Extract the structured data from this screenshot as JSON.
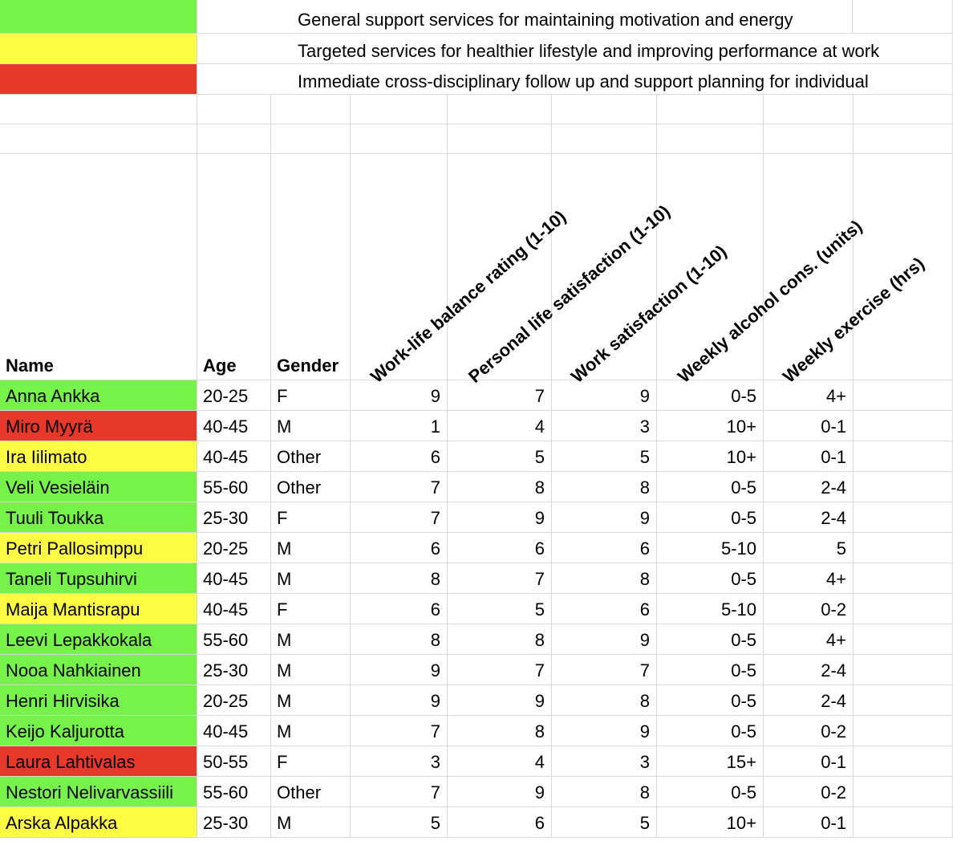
{
  "colors": {
    "green": "#77f24b",
    "yellow": "#fcfc45",
    "red": "#e8382a",
    "grid": "#d9d9d9"
  },
  "legend": [
    {
      "color": "green",
      "text": "General support services for maintaining motivation and energy"
    },
    {
      "color": "yellow",
      "text": "Targeted services for healthier lifestyle and improving performance at work"
    },
    {
      "color": "red",
      "text": "Immediate cross-disciplinary follow up and support planning for individual"
    }
  ],
  "headers": {
    "name": "Name",
    "age": "Age",
    "gender": "Gender",
    "worklife": "Work-life balance rating (1-10)",
    "personal": "Personal life satisfaction (1-10)",
    "work": "Work satisfaction (1-10)",
    "alcohol": "Weekly alcohol cons. (units)",
    "exercise": "Weekly exercise (hrs)"
  },
  "rows": [
    {
      "color": "green",
      "name": "Anna Ankka",
      "age": "20-25",
      "gender": "F",
      "worklife": "9",
      "personal": "7",
      "work": "9",
      "alcohol": "0-5",
      "exercise": "4+"
    },
    {
      "color": "red",
      "name": "Miro Myyrä",
      "age": "40-45",
      "gender": "M",
      "worklife": "1",
      "personal": "4",
      "work": "3",
      "alcohol": "10+",
      "exercise": "0-1"
    },
    {
      "color": "yellow",
      "name": "Ira Iilimato",
      "age": "40-45",
      "gender": "Other",
      "worklife": "6",
      "personal": "5",
      "work": "5",
      "alcohol": "10+",
      "exercise": "0-1"
    },
    {
      "color": "green",
      "name": "Veli Vesieläin",
      "age": "55-60",
      "gender": "Other",
      "worklife": "7",
      "personal": "8",
      "work": "8",
      "alcohol": "0-5",
      "exercise": "2-4"
    },
    {
      "color": "green",
      "name": "Tuuli Toukka",
      "age": "25-30",
      "gender": "F",
      "worklife": "7",
      "personal": "9",
      "work": "9",
      "alcohol": "0-5",
      "exercise": "2-4"
    },
    {
      "color": "yellow",
      "name": "Petri Pallosimppu",
      "age": "20-25",
      "gender": "M",
      "worklife": "6",
      "personal": "6",
      "work": "6",
      "alcohol": "5-10",
      "exercise": "5"
    },
    {
      "color": "green",
      "name": "Taneli Tupsuhirvi",
      "age": "40-45",
      "gender": "M",
      "worklife": "8",
      "personal": "7",
      "work": "8",
      "alcohol": "0-5",
      "exercise": "4+"
    },
    {
      "color": "yellow",
      "name": "Maija Mantisrapu",
      "age": "40-45",
      "gender": "F",
      "worklife": "6",
      "personal": "5",
      "work": "6",
      "alcohol": "5-10",
      "exercise": "0-2"
    },
    {
      "color": "green",
      "name": "Leevi Lepakkokala",
      "age": "55-60",
      "gender": "M",
      "worklife": "8",
      "personal": "8",
      "work": "9",
      "alcohol": "0-5",
      "exercise": "4+"
    },
    {
      "color": "green",
      "name": "Nooa Nahkiainen",
      "age": "25-30",
      "gender": "M",
      "worklife": "9",
      "personal": "7",
      "work": "7",
      "alcohol": "0-5",
      "exercise": "2-4"
    },
    {
      "color": "green",
      "name": "Henri Hirvisika",
      "age": "20-25",
      "gender": "M",
      "worklife": "9",
      "personal": "9",
      "work": "8",
      "alcohol": "0-5",
      "exercise": "2-4"
    },
    {
      "color": "green",
      "name": "Keijo Kaljurotta",
      "age": "40-45",
      "gender": "M",
      "worklife": "7",
      "personal": "8",
      "work": "9",
      "alcohol": "0-5",
      "exercise": "0-2"
    },
    {
      "color": "red",
      "name": "Laura Lahtivalas",
      "age": "50-55",
      "gender": "F",
      "worklife": "3",
      "personal": "4",
      "work": "3",
      "alcohol": "15+",
      "exercise": "0-1"
    },
    {
      "color": "green",
      "name": "Nestori Nelivarvassiili",
      "age": "55-60",
      "gender": "Other",
      "worklife": "7",
      "personal": "9",
      "work": "8",
      "alcohol": "0-5",
      "exercise": "0-2"
    },
    {
      "color": "yellow",
      "name": "Arska Alpakka",
      "age": "25-30",
      "gender": "M",
      "worklife": "5",
      "personal": "6",
      "work": "5",
      "alcohol": "10+",
      "exercise": "0-1"
    }
  ]
}
